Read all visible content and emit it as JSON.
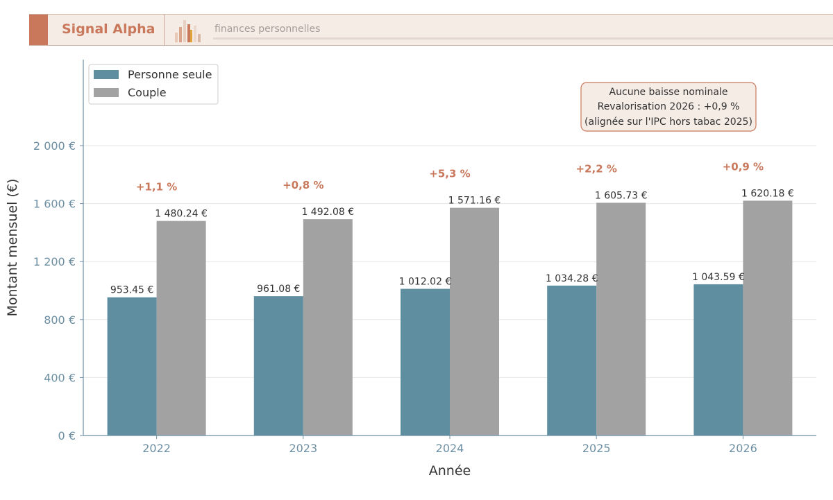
{
  "header": {
    "brand": "Signal Alpha",
    "tagline": "finances personnelles"
  },
  "colors": {
    "series_single": "#5f8ea0",
    "series_couple": "#a2a2a2",
    "accent": "#c9785b",
    "axis_text": "#6d8fa3"
  },
  "chart_data": {
    "type": "bar",
    "categories": [
      "2022",
      "2023",
      "2024",
      "2025",
      "2026"
    ],
    "series": [
      {
        "name": "Personne seule",
        "values": [
          953.45,
          961.08,
          1012.02,
          1034.28,
          1043.59
        ],
        "labels": [
          "953.45 €",
          "961.08 €",
          "1 012.02 €",
          "1 034.28 €",
          "1 043.59 €"
        ]
      },
      {
        "name": "Couple",
        "values": [
          1480.24,
          1492.08,
          1571.16,
          1605.73,
          1620.18
        ],
        "labels": [
          "1 480.24 €",
          "1 492.08 €",
          "1 571.16 €",
          "1 605.73 €",
          "1 620.18 €"
        ]
      }
    ],
    "growth_labels": [
      "+1,1 %",
      "+0,8 %",
      "+5,3 %",
      "+2,2 %",
      "+0,9 %"
    ],
    "xlabel": "Année",
    "ylabel": "Montant mensuel (€)",
    "ylim": [
      0,
      2000
    ],
    "yticks": [
      0,
      400,
      800,
      1200,
      1600,
      2000
    ],
    "ytick_labels": [
      "0 €",
      "400 €",
      "800 €",
      "1 200 €",
      "1 600 €",
      "2 000 €"
    ],
    "grid": true,
    "legend_position": "top-left",
    "annotation": [
      "Aucune baisse nominale",
      "Revalorisation 2026 : +0,9 %",
      "(alignée sur l'IPC hors tabac 2025)"
    ]
  }
}
